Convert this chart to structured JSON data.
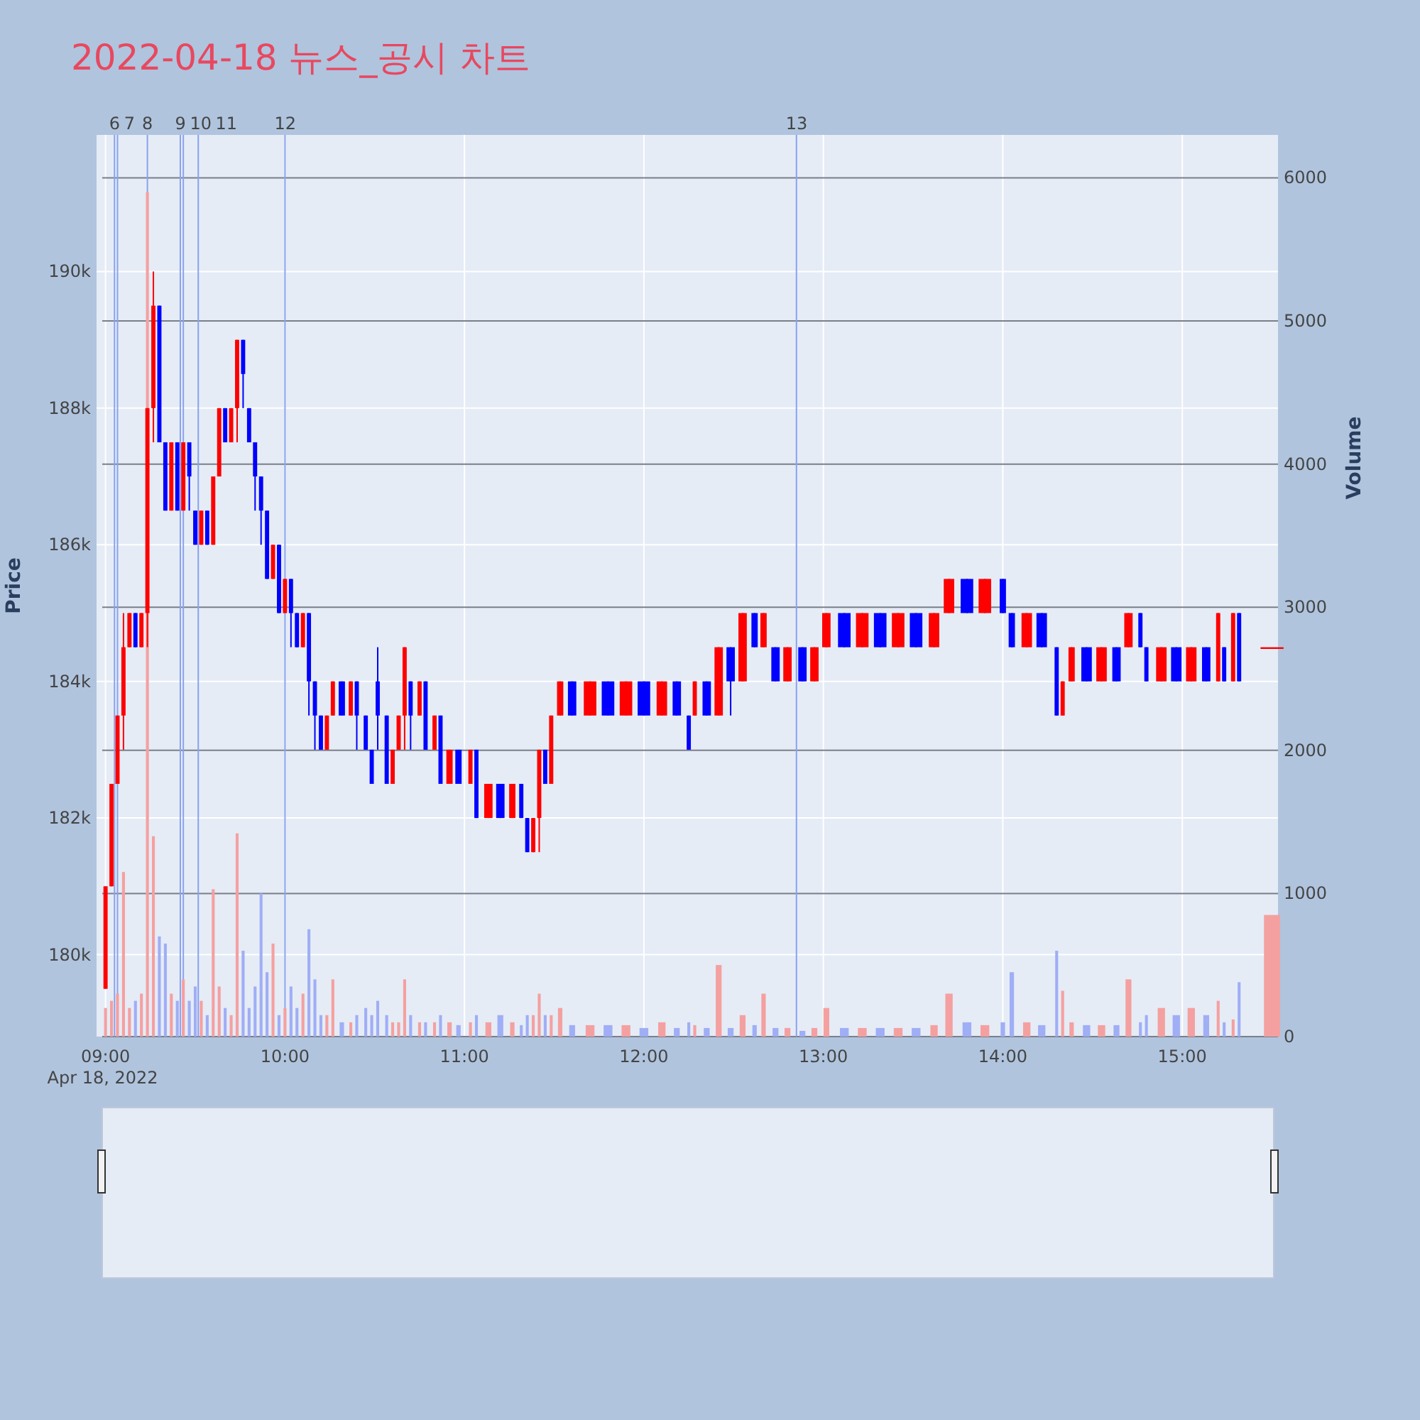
{
  "chart_data": {
    "type": "candlestick",
    "title": "2022-04-18 뉴스_공시 차트",
    "ylabel": "Price",
    "y2label": "Volume",
    "grid": true,
    "xlim": [
      "2022-04-18T08:57",
      "2022-04-18T15:32"
    ],
    "xticks": [
      {
        "value": "2022-04-18T09:00",
        "label": "09:00\nApr 18, 2022"
      },
      {
        "value": "2022-04-18T10:00",
        "label": "10:00"
      },
      {
        "value": "2022-04-18T11:00",
        "label": "11:00"
      },
      {
        "value": "2022-04-18T12:00",
        "label": "12:00"
      },
      {
        "value": "2022-04-18T13:00",
        "label": "13:00"
      },
      {
        "value": "2022-04-18T14:00",
        "label": "14:00"
      },
      {
        "value": "2022-04-18T15:00",
        "label": "15:00"
      }
    ],
    "ylim": [
      178800,
      192000
    ],
    "yticks": [
      {
        "value": 180000,
        "label": "180k"
      },
      {
        "value": 182000,
        "label": "182k"
      },
      {
        "value": 184000,
        "label": "184k"
      },
      {
        "value": 186000,
        "label": "186k"
      },
      {
        "value": 188000,
        "label": "188k"
      },
      {
        "value": 190000,
        "label": "190k"
      }
    ],
    "y2lim": [
      0,
      6300
    ],
    "y2ticks": [
      0,
      1000,
      2000,
      3000,
      4000,
      5000,
      6000
    ],
    "ref_lines": [
      {
        "axis": "x",
        "value": "2022-04-18T09:03",
        "label": "6",
        "color": "#8aa2ee"
      },
      {
        "axis": "x",
        "value": "2022-04-18T09:04",
        "label": "7",
        "color": "#8aa2ee"
      },
      {
        "axis": "x",
        "value": "2022-04-18T09:14",
        "label": "8",
        "color": "#8aa2ee"
      },
      {
        "axis": "x",
        "value": "2022-04-18T09:25",
        "label": "9",
        "color": "#8aa2ee"
      },
      {
        "axis": "x",
        "value": "2022-04-18T09:26",
        "label": "10",
        "color": "#8aa2ee"
      },
      {
        "axis": "x",
        "value": "2022-04-18T09:31",
        "label": "11",
        "color": "#8aa2ee"
      },
      {
        "axis": "x",
        "value": "2022-04-18T10:00",
        "label": "12",
        "color": "#8aa2ee"
      },
      {
        "axis": "x",
        "value": "2022-04-18T12:51",
        "label": "13",
        "color": "#8aa2ee"
      }
    ],
    "x": [
      "2022-04-18T09:00",
      "2022-04-18T09:02",
      "2022-04-18T09:04",
      "2022-04-18T09:06",
      "2022-04-18T09:08",
      "2022-04-18T09:10",
      "2022-04-18T09:12",
      "2022-04-18T09:14",
      "2022-04-18T09:16",
      "2022-04-18T09:18",
      "2022-04-18T09:20",
      "2022-04-18T09:22",
      "2022-04-18T09:24",
      "2022-04-18T09:26",
      "2022-04-18T09:28",
      "2022-04-18T09:30",
      "2022-04-18T09:32",
      "2022-04-18T09:34",
      "2022-04-18T09:36",
      "2022-04-18T09:38",
      "2022-04-18T09:40",
      "2022-04-18T09:42",
      "2022-04-18T09:44",
      "2022-04-18T09:46",
      "2022-04-18T09:48",
      "2022-04-18T09:50",
      "2022-04-18T09:52",
      "2022-04-18T09:54",
      "2022-04-18T09:56",
      "2022-04-18T09:58",
      "2022-04-18T10:00",
      "2022-04-18T10:02",
      "2022-04-18T10:04",
      "2022-04-18T10:06",
      "2022-04-18T10:08",
      "2022-04-18T10:10",
      "2022-04-18T10:12",
      "2022-04-18T10:14",
      "2022-04-18T10:16",
      "2022-04-18T10:19",
      "2022-04-18T10:22",
      "2022-04-18T10:24",
      "2022-04-18T10:27",
      "2022-04-18T10:29",
      "2022-04-18T10:31",
      "2022-04-18T10:34",
      "2022-04-18T10:36",
      "2022-04-18T10:38",
      "2022-04-18T10:40",
      "2022-04-18T10:42",
      "2022-04-18T10:45",
      "2022-04-18T10:47",
      "2022-04-18T10:50",
      "2022-04-18T10:52",
      "2022-04-18T10:55",
      "2022-04-18T10:58",
      "2022-04-18T11:02",
      "2022-04-18T11:04",
      "2022-04-18T11:08",
      "2022-04-18T11:12",
      "2022-04-18T11:16",
      "2022-04-18T11:19",
      "2022-04-18T11:21",
      "2022-04-18T11:23",
      "2022-04-18T11:25",
      "2022-04-18T11:27",
      "2022-04-18T11:29",
      "2022-04-18T11:32",
      "2022-04-18T11:36",
      "2022-04-18T11:42",
      "2022-04-18T11:48",
      "2022-04-18T11:54",
      "2022-04-18T12:00",
      "2022-04-18T12:06",
      "2022-04-18T12:11",
      "2022-04-18T12:15",
      "2022-04-18T12:17",
      "2022-04-18T12:21",
      "2022-04-18T12:25",
      "2022-04-18T12:29",
      "2022-04-18T12:33",
      "2022-04-18T12:37",
      "2022-04-18T12:40",
      "2022-04-18T12:44",
      "2022-04-18T12:48",
      "2022-04-18T12:53",
      "2022-04-18T12:57",
      "2022-04-18T13:01",
      "2022-04-18T13:07",
      "2022-04-18T13:13",
      "2022-04-18T13:19",
      "2022-04-18T13:25",
      "2022-04-18T13:31",
      "2022-04-18T13:37",
      "2022-04-18T13:42",
      "2022-04-18T13:48",
      "2022-04-18T13:54",
      "2022-04-18T14:00",
      "2022-04-18T14:03",
      "2022-04-18T14:08",
      "2022-04-18T14:13",
      "2022-04-18T14:18",
      "2022-04-18T14:20",
      "2022-04-18T14:23",
      "2022-04-18T14:28",
      "2022-04-18T14:33",
      "2022-04-18T14:38",
      "2022-04-18T14:42",
      "2022-04-18T14:46",
      "2022-04-18T14:48",
      "2022-04-18T14:53",
      "2022-04-18T14:58",
      "2022-04-18T15:03",
      "2022-04-18T15:08",
      "2022-04-18T15:12",
      "2022-04-18T15:14",
      "2022-04-18T15:17",
      "2022-04-18T15:19",
      "2022-04-18T15:30"
    ],
    "ohlc": [
      [
        179500,
        181000,
        179500,
        181000
      ],
      [
        181000,
        182500,
        181000,
        182500
      ],
      [
        182500,
        183500,
        182500,
        183500
      ],
      [
        183500,
        185000,
        183000,
        184500
      ],
      [
        184500,
        185000,
        184500,
        185000
      ],
      [
        185000,
        185000,
        184500,
        184500
      ],
      [
        184500,
        185000,
        184500,
        185000
      ],
      [
        185000,
        188000,
        184500,
        188000
      ],
      [
        188000,
        190000,
        187500,
        189500
      ],
      [
        189500,
        189500,
        187500,
        187500
      ],
      [
        187500,
        187500,
        186500,
        186500
      ],
      [
        186500,
        187500,
        186500,
        187500
      ],
      [
        187500,
        187500,
        186500,
        186500
      ],
      [
        186500,
        187500,
        186500,
        187500
      ],
      [
        187500,
        187500,
        186500,
        187000
      ],
      [
        186500,
        186500,
        186000,
        186000
      ],
      [
        186000,
        186500,
        186000,
        186500
      ],
      [
        186500,
        186500,
        186000,
        186000
      ],
      [
        186000,
        187000,
        186000,
        187000
      ],
      [
        187000,
        188000,
        187000,
        188000
      ],
      [
        188000,
        188000,
        187500,
        187500
      ],
      [
        187500,
        188000,
        187500,
        188000
      ],
      [
        188000,
        189000,
        187500,
        189000
      ],
      [
        189000,
        189000,
        188000,
        188500
      ],
      [
        188000,
        188000,
        187500,
        187500
      ],
      [
        187500,
        187500,
        186500,
        187000
      ],
      [
        187000,
        187000,
        186000,
        186500
      ],
      [
        186500,
        186500,
        185500,
        185500
      ],
      [
        185500,
        186000,
        185500,
        186000
      ],
      [
        186000,
        186000,
        185000,
        185000
      ],
      [
        185000,
        185500,
        185000,
        185500
      ],
      [
        185500,
        185500,
        184500,
        185000
      ],
      [
        185000,
        185000,
        184500,
        184500
      ],
      [
        184500,
        185000,
        184500,
        185000
      ],
      [
        185000,
        185000,
        183500,
        184000
      ],
      [
        184000,
        184000,
        183000,
        183500
      ],
      [
        183500,
        183500,
        183000,
        183000
      ],
      [
        183000,
        183500,
        183000,
        183500
      ],
      [
        183500,
        184000,
        183500,
        184000
      ],
      [
        184000,
        184000,
        183500,
        183500
      ],
      [
        183500,
        184000,
        183500,
        184000
      ],
      [
        184000,
        184000,
        183000,
        183500
      ],
      [
        183500,
        183500,
        183000,
        183000
      ],
      [
        183000,
        183000,
        182500,
        182500
      ],
      [
        184000,
        184500,
        183000,
        183500
      ],
      [
        183500,
        183500,
        182500,
        182500
      ],
      [
        182500,
        183000,
        182500,
        183000
      ],
      [
        183000,
        183500,
        183000,
        183500
      ],
      [
        183500,
        184500,
        183000,
        184500
      ],
      [
        184000,
        184000,
        183000,
        183500
      ],
      [
        183500,
        184000,
        183500,
        184000
      ],
      [
        184000,
        184000,
        183000,
        183000
      ],
      [
        183000,
        183500,
        183000,
        183500
      ],
      [
        183500,
        183500,
        182500,
        182500
      ],
      [
        182500,
        183000,
        182500,
        183000
      ],
      [
        183000,
        183000,
        182500,
        182500
      ],
      [
        182500,
        183000,
        182500,
        183000
      ],
      [
        183000,
        183000,
        182000,
        182000
      ],
      [
        182000,
        182500,
        182000,
        182500
      ],
      [
        182500,
        182500,
        182000,
        182000
      ],
      [
        182000,
        182500,
        182000,
        182500
      ],
      [
        182500,
        182500,
        182000,
        182000
      ],
      [
        182000,
        182000,
        181500,
        181500
      ],
      [
        181500,
        182000,
        181500,
        182000
      ],
      [
        182000,
        183000,
        181500,
        183000
      ],
      [
        183000,
        183000,
        182500,
        182500
      ],
      [
        182500,
        183500,
        182500,
        183500
      ],
      [
        183500,
        184000,
        183500,
        184000
      ],
      [
        184000,
        184000,
        183500,
        183500
      ],
      [
        183500,
        184000,
        183500,
        184000
      ],
      [
        184000,
        184000,
        183500,
        183500
      ],
      [
        183500,
        184000,
        183500,
        184000
      ],
      [
        184000,
        184000,
        183500,
        183500
      ],
      [
        183500,
        184000,
        183500,
        184000
      ],
      [
        184000,
        184000,
        183500,
        183500
      ],
      [
        183500,
        183500,
        183000,
        183000
      ],
      [
        183500,
        184000,
        183500,
        184000
      ],
      [
        184000,
        184000,
        183500,
        183500
      ],
      [
        183500,
        184500,
        183500,
        184500
      ],
      [
        184500,
        184500,
        183500,
        184000
      ],
      [
        184000,
        185000,
        184000,
        185000
      ],
      [
        185000,
        185000,
        184500,
        184500
      ],
      [
        184500,
        185000,
        184500,
        185000
      ],
      [
        184500,
        184500,
        184000,
        184000
      ],
      [
        184000,
        184500,
        184000,
        184500
      ],
      [
        184500,
        184500,
        184000,
        184000
      ],
      [
        184000,
        184500,
        184000,
        184500
      ],
      [
        184500,
        185000,
        184500,
        185000
      ],
      [
        185000,
        185000,
        184500,
        184500
      ],
      [
        184500,
        185000,
        184500,
        185000
      ],
      [
        185000,
        185000,
        184500,
        184500
      ],
      [
        184500,
        185000,
        184500,
        185000
      ],
      [
        185000,
        185000,
        184500,
        184500
      ],
      [
        184500,
        185000,
        184500,
        185000
      ],
      [
        185000,
        185500,
        185000,
        185500
      ],
      [
        185500,
        185500,
        185000,
        185000
      ],
      [
        185000,
        185500,
        185000,
        185500
      ],
      [
        185500,
        185500,
        185000,
        185000
      ],
      [
        185000,
        185000,
        184500,
        184500
      ],
      [
        184500,
        185000,
        184500,
        185000
      ],
      [
        185000,
        185000,
        184500,
        184500
      ],
      [
        184500,
        184500,
        183500,
        183500
      ],
      [
        183500,
        184000,
        183500,
        184000
      ],
      [
        184000,
        184500,
        184000,
        184500
      ],
      [
        184500,
        184500,
        184000,
        184000
      ],
      [
        184000,
        184500,
        184000,
        184500
      ],
      [
        184500,
        184500,
        184000,
        184000
      ],
      [
        184500,
        185000,
        184500,
        185000
      ],
      [
        185000,
        185000,
        184500,
        184500
      ],
      [
        184500,
        184500,
        184000,
        184000
      ],
      [
        184000,
        184500,
        184000,
        184500
      ],
      [
        184500,
        184500,
        184000,
        184000
      ],
      [
        184000,
        184500,
        184000,
        184500
      ],
      [
        184500,
        184500,
        184000,
        184000
      ],
      [
        184000,
        185000,
        184000,
        185000
      ],
      [
        184500,
        184500,
        184000,
        184000
      ],
      [
        184000,
        185000,
        184000,
        185000
      ],
      [
        185000,
        185000,
        184000,
        184000
      ],
      [
        184500,
        184500,
        184500,
        184500
      ]
    ],
    "colors": [
      "#ff0000",
      "#ff0000",
      "#ff0000",
      "#ff0000",
      "#ff0000",
      "#0000ff",
      "#ff0000",
      "#ff0000",
      "#ff0000",
      "#0000ff",
      "#0000ff",
      "#ff0000",
      "#0000ff",
      "#ff0000",
      "#0000ff",
      "#0000ff",
      "#ff0000",
      "#0000ff",
      "#ff0000",
      "#ff0000",
      "#0000ff",
      "#ff0000",
      "#ff0000",
      "#0000ff",
      "#0000ff",
      "#0000ff",
      "#0000ff",
      "#0000ff",
      "#ff0000",
      "#0000ff",
      "#ff0000",
      "#0000ff",
      "#0000ff",
      "#ff0000",
      "#0000ff",
      "#0000ff",
      "#0000ff",
      "#ff0000",
      "#ff0000",
      "#0000ff",
      "#ff0000",
      "#0000ff",
      "#0000ff",
      "#0000ff",
      "#0000ff",
      "#0000ff",
      "#ff0000",
      "#ff0000",
      "#ff0000",
      "#0000ff",
      "#ff0000",
      "#0000ff",
      "#ff0000",
      "#0000ff",
      "#ff0000",
      "#0000ff",
      "#ff0000",
      "#0000ff",
      "#ff0000",
      "#0000ff",
      "#ff0000",
      "#0000ff",
      "#0000ff",
      "#ff0000",
      "#ff0000",
      "#0000ff",
      "#ff0000",
      "#ff0000",
      "#0000ff",
      "#ff0000",
      "#0000ff",
      "#ff0000",
      "#0000ff",
      "#ff0000",
      "#0000ff",
      "#0000ff",
      "#ff0000",
      "#0000ff",
      "#ff0000",
      "#0000ff",
      "#ff0000",
      "#0000ff",
      "#ff0000",
      "#0000ff",
      "#ff0000",
      "#0000ff",
      "#ff0000",
      "#ff0000",
      "#0000ff",
      "#ff0000",
      "#0000ff",
      "#ff0000",
      "#0000ff",
      "#ff0000",
      "#ff0000",
      "#0000ff",
      "#ff0000",
      "#0000ff",
      "#0000ff",
      "#ff0000",
      "#0000ff",
      "#0000ff",
      "#ff0000",
      "#ff0000",
      "#0000ff",
      "#ff0000",
      "#0000ff",
      "#ff0000",
      "#0000ff",
      "#0000ff",
      "#ff0000",
      "#0000ff",
      "#ff0000",
      "#0000ff",
      "#ff0000",
      "#0000ff",
      "#ff0000",
      "#0000ff",
      "#ff0000"
    ],
    "series": [
      {
        "type": "bar",
        "axis": "y2",
        "values": [
          200,
          250,
          300,
          1150,
          200,
          250,
          300,
          5900,
          1400,
          700,
          650,
          300,
          250,
          400,
          250,
          350,
          250,
          150,
          1030,
          350,
          200,
          150,
          1420,
          600,
          200,
          350,
          1000,
          450,
          650,
          150,
          200,
          350,
          200,
          300,
          750,
          400,
          150,
          150,
          400,
          100,
          100,
          150,
          200,
          150,
          250,
          150,
          100,
          100,
          400,
          150,
          100,
          100,
          100,
          150,
          100,
          80,
          100,
          150,
          100,
          150,
          100,
          80,
          150,
          150,
          300,
          150,
          150,
          200,
          80,
          80,
          80,
          80,
          60,
          100,
          60,
          100,
          80,
          60,
          500,
          60,
          150,
          80,
          300,
          60,
          60,
          40,
          60,
          200,
          60,
          60,
          60,
          60,
          60,
          80,
          300,
          100,
          80,
          100,
          450,
          100,
          80,
          600,
          320,
          100,
          80,
          80,
          80,
          400,
          100,
          150,
          200,
          150,
          200,
          150,
          250,
          100,
          120,
          380,
          850
        ],
        "colors": [
          "#f5a0a0",
          "#f5a0a0",
          "#f5a0a0",
          "#f5a0a0",
          "#f5a0a0",
          "#a0aef5",
          "#f5a0a0",
          "#f5a0a0",
          "#f5a0a0",
          "#a0aef5",
          "#a0aef5",
          "#f5a0a0",
          "#a0aef5",
          "#f5a0a0",
          "#a0aef5",
          "#a0aef5",
          "#f5a0a0",
          "#a0aef5",
          "#f5a0a0",
          "#f5a0a0",
          "#a0aef5",
          "#f5a0a0",
          "#f5a0a0",
          "#a0aef5",
          "#a0aef5",
          "#a0aef5",
          "#a0aef5",
          "#a0aef5",
          "#f5a0a0",
          "#a0aef5",
          "#f5a0a0",
          "#a0aef5",
          "#a0aef5",
          "#f5a0a0",
          "#a0aef5",
          "#a0aef5",
          "#a0aef5",
          "#f5a0a0",
          "#f5a0a0",
          "#a0aef5",
          "#f5a0a0",
          "#a0aef5",
          "#a0aef5",
          "#a0aef5",
          "#a0aef5",
          "#a0aef5",
          "#f5a0a0",
          "#f5a0a0",
          "#f5a0a0",
          "#a0aef5",
          "#f5a0a0",
          "#a0aef5",
          "#f5a0a0",
          "#a0aef5",
          "#f5a0a0",
          "#a0aef5",
          "#f5a0a0",
          "#a0aef5",
          "#f5a0a0",
          "#a0aef5",
          "#f5a0a0",
          "#a0aef5",
          "#a0aef5",
          "#f5a0a0",
          "#f5a0a0",
          "#a0aef5",
          "#f5a0a0",
          "#f5a0a0",
          "#a0aef5",
          "#f5a0a0",
          "#a0aef5",
          "#f5a0a0",
          "#a0aef5",
          "#f5a0a0",
          "#a0aef5",
          "#a0aef5",
          "#f5a0a0",
          "#a0aef5",
          "#f5a0a0",
          "#a0aef5",
          "#f5a0a0",
          "#a0aef5",
          "#f5a0a0",
          "#a0aef5",
          "#f5a0a0",
          "#a0aef5",
          "#f5a0a0",
          "#f5a0a0",
          "#a0aef5",
          "#f5a0a0",
          "#a0aef5",
          "#f5a0a0",
          "#a0aef5",
          "#f5a0a0",
          "#f5a0a0",
          "#a0aef5",
          "#f5a0a0",
          "#a0aef5",
          "#a0aef5",
          "#f5a0a0",
          "#a0aef5",
          "#a0aef5",
          "#f5a0a0",
          "#f5a0a0",
          "#a0aef5",
          "#f5a0a0",
          "#a0aef5",
          "#f5a0a0",
          "#a0aef5",
          "#a0aef5",
          "#f5a0a0",
          "#a0aef5",
          "#f5a0a0",
          "#a0aef5",
          "#f5a0a0",
          "#a0aef5",
          "#f5a0a0",
          "#a0aef5",
          "#f5a0a0"
        ]
      }
    ]
  }
}
